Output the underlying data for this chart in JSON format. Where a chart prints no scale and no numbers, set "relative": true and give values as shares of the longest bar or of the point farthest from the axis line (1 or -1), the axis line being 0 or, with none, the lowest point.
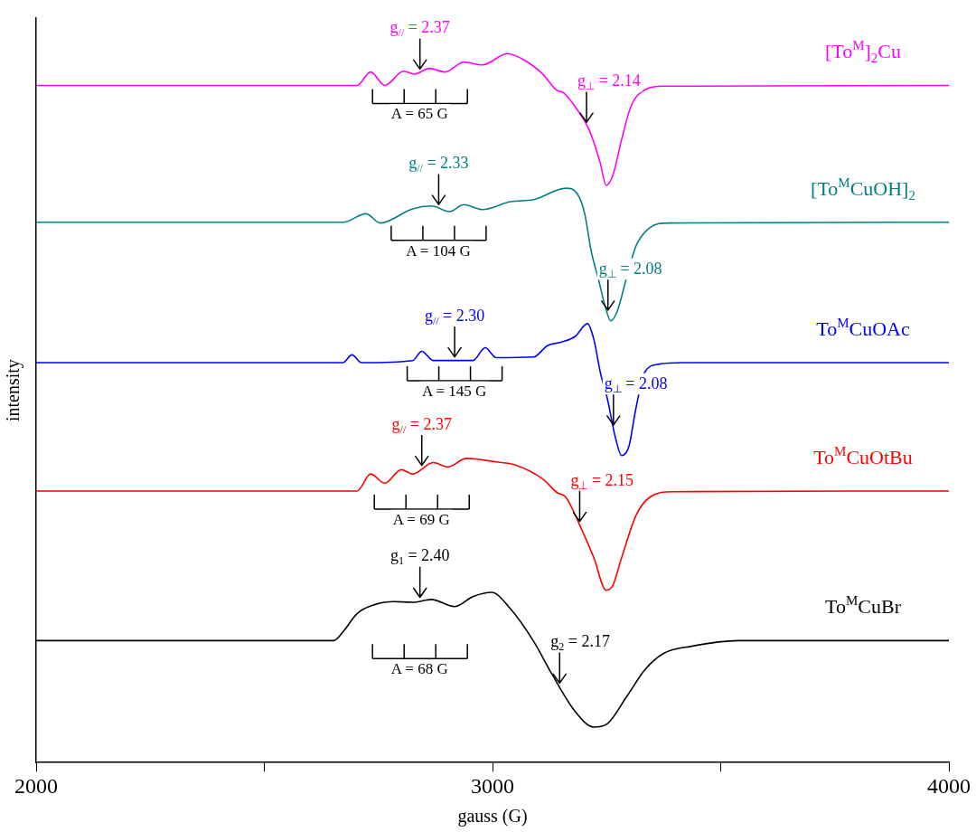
{
  "chart_data": {
    "type": "line",
    "relative": true,
    "xlabel": "gauss (G)",
    "ylabel": "intensity",
    "xlim": [
      2000,
      4000
    ],
    "xticks": [
      2000,
      {
        "value": 2500,
        "label": null
      },
      3000,
      {
        "value": 3500,
        "label": null
      },
      4000
    ],
    "grid": false,
    "legend": false,
    "marker": "none",
    "series": [
      {
        "name": "[To$^{M}$]$_{2}$Cu",
        "color": "#ff00ff",
        "x": [
          2000,
          2703,
          2733,
          2764,
          2805,
          2829,
          2862,
          2896,
          2937,
          2978,
          3033,
          3069,
          3110,
          3141,
          3155,
          3181,
          3212,
          3236,
          3249,
          3263,
          3283,
          3303,
          3334,
          3375,
          4000
        ],
        "values": [
          0.955,
          0.955,
          0.974,
          0.955,
          0.975,
          0.971,
          0.979,
          0.974,
          0.988,
          0.984,
          1.0,
          0.991,
          0.971,
          0.948,
          0.945,
          0.925,
          0.892,
          0.846,
          0.814,
          0.827,
          0.879,
          0.925,
          0.949,
          0.954,
          0.955
        ]
      },
      {
        "name": "[To$^{M}$CuOH]$_{2}$",
        "color": "#008080",
        "x": [
          2000,
          2672,
          2723,
          2754,
          2825,
          2866,
          2906,
          2937,
          2978,
          3039,
          3090,
          3161,
          3187,
          3202,
          3216,
          3232,
          3247,
          3259,
          3273,
          3293,
          3314,
          3344,
          3385,
          4000
        ],
        "values": [
          0.762,
          0.762,
          0.774,
          0.761,
          0.781,
          0.785,
          0.777,
          0.787,
          0.78,
          0.791,
          0.794,
          0.81,
          0.801,
          0.774,
          0.722,
          0.682,
          0.643,
          0.623,
          0.636,
          0.682,
          0.728,
          0.754,
          0.761,
          0.762
        ]
      },
      {
        "name": "To$^{M}$CuOAc",
        "color": "#0000ff",
        "x": [
          2000,
          2672,
          2692,
          2713,
          2825,
          2845,
          2870,
          2957,
          2984,
          3008,
          3090,
          3120,
          3151,
          3181,
          3208,
          3222,
          3236,
          3252,
          3269,
          3283,
          3299,
          3314,
          3334,
          3365,
          3415,
          4000
        ],
        "values": [
          0.564,
          0.564,
          0.575,
          0.564,
          0.567,
          0.58,
          0.567,
          0.567,
          0.585,
          0.571,
          0.572,
          0.588,
          0.593,
          0.601,
          0.619,
          0.597,
          0.551,
          0.512,
          0.459,
          0.433,
          0.446,
          0.499,
          0.551,
          0.562,
          0.564,
          0.564
        ]
      },
      {
        "name": "To$^{M}$CuOtBu",
        "color": "#ff0000",
        "x": [
          2000,
          2703,
          2733,
          2764,
          2800,
          2825,
          2870,
          2902,
          2943,
          3008,
          3049,
          3110,
          3141,
          3161,
          3191,
          3222,
          3249,
          3263,
          3283,
          3314,
          3344,
          3395,
          4000
        ],
        "values": [
          0.383,
          0.383,
          0.407,
          0.394,
          0.413,
          0.407,
          0.423,
          0.417,
          0.429,
          0.424,
          0.42,
          0.4,
          0.381,
          0.374,
          0.335,
          0.289,
          0.243,
          0.249,
          0.289,
          0.348,
          0.374,
          0.382,
          0.383
        ]
      },
      {
        "name": "To$^{M}$CuBr",
        "color": "#000000",
        "x": [
          2000,
          2652,
          2672,
          2703,
          2743,
          2784,
          2825,
          2866,
          2917,
          2957,
          2998,
          3039,
          3090,
          3130,
          3181,
          3222,
          3252,
          3293,
          3334,
          3375,
          3436,
          3538,
          4000
        ],
        "values": [
          0.172,
          0.172,
          0.184,
          0.21,
          0.223,
          0.227,
          0.226,
          0.23,
          0.22,
          0.234,
          0.24,
          0.217,
          0.171,
          0.125,
          0.072,
          0.05,
          0.055,
          0.092,
          0.131,
          0.154,
          0.164,
          0.172,
          0.172
        ]
      }
    ],
    "annotations": [
      {
        "text": "g$_{//}$ = 2.37",
        "x": 2841,
        "y": 0.973
      },
      {
        "text": "g$_{⊥}$ = 2.14",
        "x": 3206,
        "y": 0.898
      },
      "A = 65 G",
      {
        "text": "g$_{//}$ = 2.33",
        "x": 2882,
        "y": 0.782
      },
      {
        "text": "g$_{⊥}$ = 2.08",
        "x": 3253,
        "y": 0.633
      },
      "A = 104 G",
      {
        "text": "g$_{//}$ = 2.30",
        "x": 2917,
        "y": 0.567
      },
      {
        "text": "g$_{⊥}$ = 2.08",
        "x": 3265,
        "y": 0.471
      },
      "A = 145 G",
      {
        "text": "g$_{//}$ = 2.37",
        "x": 2845,
        "y": 0.414
      },
      {
        "text": "g$_{⊥}$ = 2.15",
        "x": 3191,
        "y": 0.335
      },
      "A = 69 G",
      {
        "text": "g$_{1}$ = 2.40",
        "x": 2841,
        "y": 0.228
      },
      {
        "text": "g$_{2}$ = 2.17",
        "x": 3147,
        "y": 0.107
      },
      "A = 68 G"
    ]
  }
}
